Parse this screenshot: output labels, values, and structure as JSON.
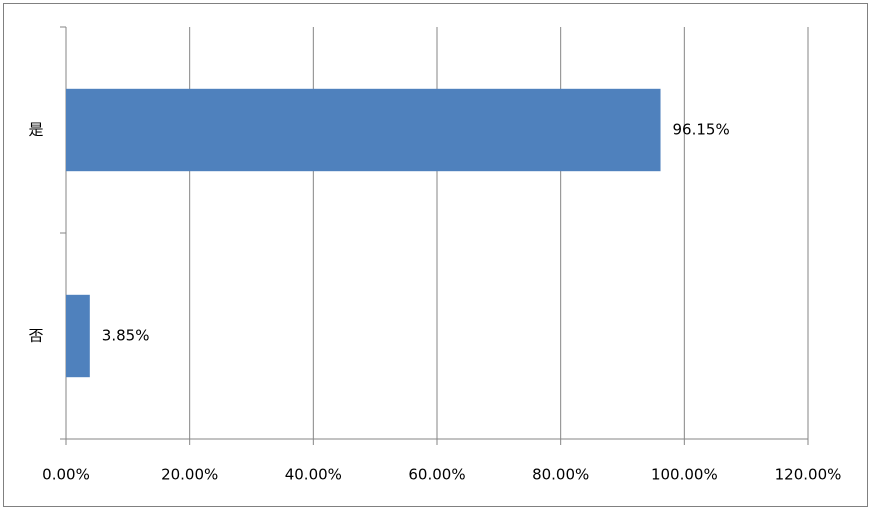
{
  "chart_data": {
    "type": "bar",
    "orientation": "horizontal",
    "categories": [
      "是",
      "否"
    ],
    "values": [
      96.15,
      3.85
    ],
    "value_labels": [
      "96.15%",
      "3.85%"
    ],
    "color": "#4f81bd",
    "xlim": [
      0,
      120
    ],
    "xticks": [
      {
        "value": 0,
        "label": "0.00%"
      },
      {
        "value": 20,
        "label": "20.00%"
      },
      {
        "value": 40,
        "label": "40.00%"
      },
      {
        "value": 60,
        "label": "60.00%"
      },
      {
        "value": 80,
        "label": "80.00%"
      },
      {
        "value": 100,
        "label": "100.00%"
      },
      {
        "value": 120,
        "label": "120.00%"
      }
    ],
    "grid": true
  }
}
